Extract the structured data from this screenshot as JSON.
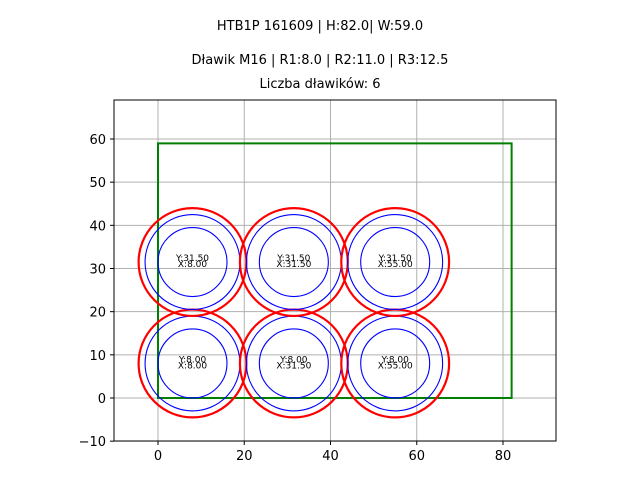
{
  "header": {
    "title_line1": "HTB1P 161609 | H:82.0| W:59.0",
    "title_line2": "Dławik M16 | R1:8.0 | R2:11.0 | R3:12.5",
    "title_line3": "Liczba dławików: 6"
  },
  "chart_data": {
    "type": "scatter",
    "title": "HTB1P 161609 | H:82.0| W:59.0\nDławik M16 | R1:8.0 | R2:11.0 | R3:12.5\nLiczba dławików: 6",
    "xlabel": "",
    "ylabel": "",
    "xlim": [
      -10.2,
      92.3
    ],
    "ylim": [
      -10,
      69
    ],
    "grid": true,
    "x_ticks": [
      "0",
      "20",
      "40",
      "60",
      "80"
    ],
    "y_ticks": [
      "−10",
      "0",
      "10",
      "20",
      "30",
      "40",
      "50",
      "60"
    ],
    "enclosure": {
      "x": 0,
      "y": 0,
      "width": 82.0,
      "height": 59.0,
      "color": "#008000"
    },
    "radii": {
      "R1": 8.0,
      "R2": 11.0,
      "R3": 12.5
    },
    "ring_colors": {
      "R1": "#0000ff",
      "R2": "#0000ff",
      "R3": "#ff0000"
    },
    "glands": [
      {
        "x": 8.0,
        "y": 8.0,
        "label_y": "Y:8.00",
        "label_x": "X:8.00"
      },
      {
        "x": 31.5,
        "y": 8.0,
        "label_y": "Y:8.00",
        "label_x": "X:31.50"
      },
      {
        "x": 55.0,
        "y": 8.0,
        "label_y": "Y:8.00",
        "label_x": "X:55.00"
      },
      {
        "x": 8.0,
        "y": 31.5,
        "label_y": "Y:31.50",
        "label_x": "X:8.00"
      },
      {
        "x": 31.5,
        "y": 31.5,
        "label_y": "Y:31.50",
        "label_x": "X:31.50"
      },
      {
        "x": 55.0,
        "y": 31.5,
        "label_y": "Y:31.50",
        "label_x": "X:55.00"
      }
    ]
  }
}
